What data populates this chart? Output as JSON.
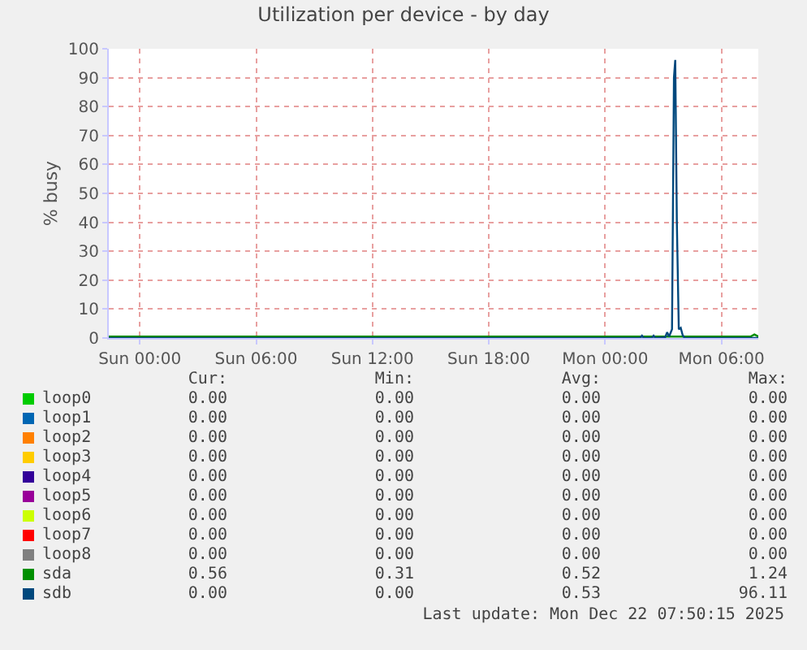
{
  "chart_data": {
    "type": "line",
    "title": "Utilization per device - by day",
    "ylabel": "% busy",
    "xlim": [
      "2025-12-20T22:24",
      "2025-12-22T07:54"
    ],
    "xticks": [
      {
        "value": "2025-12-21T00:00",
        "label": "Sun 00:00"
      },
      {
        "value": "2025-12-21T06:00",
        "label": "Sun 06:00"
      },
      {
        "value": "2025-12-21T12:00",
        "label": "Sun 12:00"
      },
      {
        "value": "2025-12-21T18:00",
        "label": "Sun 18:00"
      },
      {
        "value": "2025-12-22T00:00",
        "label": "Mon 00:00"
      },
      {
        "value": "2025-12-22T06:00",
        "label": "Mon 06:00"
      }
    ],
    "ylim": [
      0,
      100
    ],
    "yticks": [
      0,
      10,
      20,
      30,
      40,
      50,
      60,
      70,
      80,
      90,
      100
    ],
    "grid": true,
    "legend": "bottom",
    "marker": "none",
    "line_style": "solid",
    "series": [
      {
        "name": "loop0",
        "color": "#00cc00"
      },
      {
        "name": "loop1",
        "color": "#0066b3"
      },
      {
        "name": "loop2",
        "color": "#ff8000"
      },
      {
        "name": "loop3",
        "color": "#ffcc00"
      },
      {
        "name": "loop4",
        "color": "#330099"
      },
      {
        "name": "loop5",
        "color": "#990099"
      },
      {
        "name": "loop6",
        "color": "#ccff00"
      },
      {
        "name": "loop7",
        "color": "#ff0000"
      },
      {
        "name": "loop8",
        "color": "#808080"
      },
      {
        "name": "sda",
        "color": "#008f00",
        "x": [
          "2025-12-20T22:24",
          "2025-12-22T07:30",
          "2025-12-22T07:42",
          "2025-12-22T07:54"
        ],
        "values": [
          0.5,
          0.5,
          1.2,
          0.5
        ]
      },
      {
        "name": "sdb",
        "color": "#00487d",
        "x": [
          "2025-12-20T22:24",
          "2025-12-22T01:48",
          "2025-12-22T01:54",
          "2025-12-22T02:00",
          "2025-12-22T02:24",
          "2025-12-22T02:30",
          "2025-12-22T02:36",
          "2025-12-22T03:06",
          "2025-12-22T03:12",
          "2025-12-22T03:18",
          "2025-12-22T03:27",
          "2025-12-22T03:33",
          "2025-12-22T03:37",
          "2025-12-22T03:42",
          "2025-12-22T03:48",
          "2025-12-22T03:54",
          "2025-12-22T04:00",
          "2025-12-22T04:06",
          "2025-12-22T07:54"
        ],
        "values": [
          0,
          0,
          0.8,
          0,
          0,
          0.8,
          0,
          0.3,
          2,
          0.5,
          3,
          90,
          96.1,
          40,
          3,
          3.5,
          1,
          0,
          0
        ]
      }
    ],
    "annotations": [
      "Cur:",
      "Min:",
      "Avg:",
      "Max:",
      "0.00",
      "0.00",
      "0.00",
      "0.00",
      "0.00",
      "0.00",
      "0.00",
      "0.00",
      "0.00",
      "0.00",
      "0.00",
      "0.00",
      "0.00",
      "0.00",
      "0.00",
      "0.00",
      "0.00",
      "0.00",
      "0.00",
      "0.00",
      "0.00",
      "0.00",
      "0.00",
      "0.00",
      "0.00",
      "0.00",
      "0.00",
      "0.00",
      "0.00",
      "0.00",
      "0.00",
      "0.00",
      "0.00",
      "0.00",
      "0.00",
      "0.00",
      "0.56",
      "0.31",
      "0.52",
      "1.24",
      "0.00",
      "0.00",
      "0.53",
      "96.11",
      "Last update:  Mon Dec 22 07:50:15 2025"
    ]
  }
}
